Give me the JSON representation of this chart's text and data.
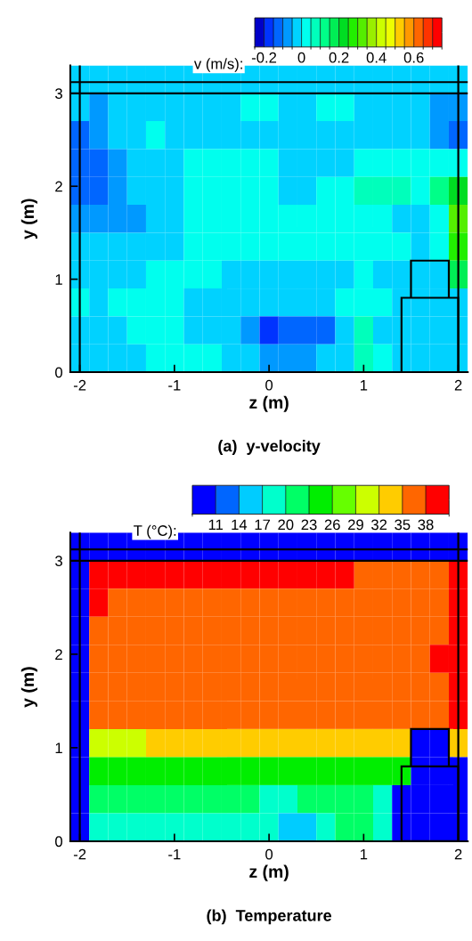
{
  "chart_data": [
    {
      "type": "heatmap",
      "title": "(a)  y-velocity",
      "xlabel": "z (m)",
      "ylabel": "y (m)",
      "clabel": "v (m/s):",
      "x": [
        -2.0,
        -1.8,
        -1.6,
        -1.4,
        -1.2,
        -1.0,
        -0.8,
        -0.6,
        -0.4,
        -0.2,
        0.0,
        0.2,
        0.4,
        0.6,
        0.8,
        1.0,
        1.2,
        1.4,
        1.6,
        1.8,
        2.0
      ],
      "y": [
        3.15,
        2.85,
        2.55,
        2.25,
        1.95,
        1.65,
        1.35,
        1.05,
        0.75,
        0.45,
        0.15
      ],
      "xlim": [
        -2.1,
        2.1
      ],
      "ylim": [
        0,
        3.3
      ],
      "xticks": [
        -2,
        -1,
        0,
        1,
        2
      ],
      "yticks": [
        0,
        1,
        2,
        3
      ],
      "ref_lines": [
        {
          "axis": "x",
          "value": -2,
          "label": null
        },
        {
          "axis": "x",
          "value": 2,
          "label": null
        },
        {
          "axis": "y",
          "value": 3,
          "label": null
        },
        {
          "axis": "y",
          "value": 3.12,
          "label": null
        }
      ],
      "clim": [
        -0.25,
        0.75
      ],
      "cticks": [
        -0.2,
        0,
        0.2,
        0.4,
        0.6
      ],
      "colors": [
        "#0000c8",
        "#0033ff",
        "#0066ff",
        "#0099ff",
        "#00d2ff",
        "#00ffee",
        "#00ffbb",
        "#00ff88",
        "#00ee55",
        "#00dd22",
        "#22ee00",
        "#55ee00",
        "#99ee00",
        "#ccff00",
        "#eeff00",
        "#ffcc00",
        "#ff9900",
        "#ff6600",
        "#ff3300",
        "#ff0000"
      ],
      "cells": [
        [
          -0.03,
          -0.03,
          -0.03,
          -0.03,
          -0.03,
          -0.03,
          -0.03,
          -0.03,
          -0.03,
          -0.03,
          -0.03,
          -0.03,
          -0.03,
          -0.03,
          -0.03,
          -0.03,
          -0.03,
          -0.03,
          -0.03,
          -0.03,
          -0.03
        ],
        [
          -0.03,
          -0.07,
          -0.03,
          -0.03,
          -0.03,
          -0.03,
          -0.03,
          -0.03,
          -0.03,
          0.02,
          0.02,
          -0.03,
          -0.03,
          0.02,
          0.02,
          -0.03,
          -0.03,
          -0.03,
          -0.03,
          -0.07,
          -0.07
        ],
        [
          -0.12,
          -0.07,
          -0.03,
          -0.03,
          0.02,
          -0.03,
          -0.03,
          -0.03,
          -0.03,
          -0.03,
          -0.03,
          -0.03,
          -0.03,
          -0.03,
          -0.03,
          -0.03,
          -0.03,
          -0.03,
          -0.03,
          -0.07,
          -0.12
        ],
        [
          -0.12,
          -0.12,
          -0.07,
          -0.03,
          -0.03,
          -0.03,
          0.02,
          0.02,
          0.02,
          0.02,
          0.02,
          -0.03,
          -0.03,
          -0.03,
          -0.03,
          0.02,
          0.02,
          0.02,
          0.02,
          0.02,
          0.02
        ],
        [
          -0.12,
          -0.12,
          -0.07,
          -0.03,
          -0.03,
          -0.03,
          0.02,
          0.02,
          0.02,
          0.02,
          0.02,
          -0.03,
          -0.03,
          0.02,
          0.02,
          0.07,
          0.07,
          0.07,
          0.02,
          0.12,
          0.22
        ],
        [
          -0.07,
          -0.07,
          -0.07,
          -0.07,
          -0.03,
          -0.03,
          0.02,
          0.02,
          0.02,
          0.02,
          0.02,
          0.02,
          0.02,
          0.02,
          0.02,
          0.02,
          0.02,
          -0.03,
          -0.03,
          0.02,
          0.32
        ],
        [
          -0.03,
          -0.03,
          -0.03,
          -0.03,
          -0.03,
          -0.03,
          0.02,
          0.02,
          0.02,
          0.02,
          0.02,
          0.02,
          0.02,
          0.02,
          0.02,
          0.02,
          0.02,
          0.02,
          -0.03,
          0.02,
          0.27
        ],
        [
          -0.03,
          -0.03,
          -0.03,
          -0.03,
          0.02,
          0.02,
          0.02,
          0.02,
          -0.03,
          -0.03,
          -0.03,
          -0.03,
          -0.03,
          -0.03,
          -0.03,
          0.02,
          -0.03,
          -0.03,
          -0.03,
          -0.03,
          0.17
        ],
        [
          0.02,
          -0.03,
          0.02,
          0.02,
          0.02,
          0.02,
          -0.03,
          -0.03,
          -0.03,
          -0.03,
          -0.03,
          -0.03,
          -0.03,
          -0.03,
          0.02,
          0.02,
          0.02,
          -0.03,
          -0.03,
          -0.03,
          -0.03
        ],
        [
          -0.03,
          -0.03,
          -0.03,
          0.02,
          0.02,
          0.02,
          -0.03,
          -0.03,
          -0.03,
          -0.07,
          -0.17,
          -0.12,
          -0.12,
          -0.12,
          -0.03,
          0.07,
          -0.03,
          -0.03,
          -0.03,
          -0.03,
          -0.03
        ],
        [
          -0.03,
          -0.03,
          -0.03,
          -0.03,
          0.02,
          0.02,
          0.02,
          0.02,
          -0.03,
          -0.03,
          -0.07,
          -0.07,
          -0.07,
          -0.03,
          -0.03,
          0.07,
          0.02,
          -0.03,
          -0.03,
          -0.03,
          -0.03
        ]
      ]
    },
    {
      "type": "heatmap",
      "title": "(b)  Temperature",
      "xlabel": "z (m)",
      "ylabel": "y (m)",
      "clabel": "T (°C):",
      "x": [
        -2.0,
        -1.8,
        -1.6,
        -1.4,
        -1.2,
        -1.0,
        -0.8,
        -0.6,
        -0.4,
        -0.2,
        0.0,
        0.2,
        0.4,
        0.6,
        0.8,
        1.0,
        1.2,
        1.4,
        1.6,
        1.8,
        2.0
      ],
      "y": [
        3.15,
        2.85,
        2.55,
        2.25,
        1.95,
        1.65,
        1.35,
        1.05,
        0.75,
        0.45,
        0.15
      ],
      "xlim": [
        -2.1,
        2.1
      ],
      "ylim": [
        0,
        3.3
      ],
      "xticks": [
        -2,
        -1,
        0,
        1,
        2
      ],
      "yticks": [
        0,
        1,
        2,
        3
      ],
      "ref_lines": [
        {
          "axis": "x",
          "value": -2,
          "label": null
        },
        {
          "axis": "x",
          "value": 2,
          "label": null
        },
        {
          "axis": "y",
          "value": 3,
          "label": null
        },
        {
          "axis": "y",
          "value": 3.12,
          "label": null
        }
      ],
      "clim": [
        8,
        41
      ],
      "cticks": [
        11,
        14,
        17,
        20,
        23,
        26,
        29,
        32,
        35,
        38
      ],
      "colors": [
        "#0000ff",
        "#0066ff",
        "#00ccff",
        "#00ffcc",
        "#00ff66",
        "#00ee00",
        "#66ff00",
        "#ccff00",
        "#ffcc00",
        "#ff6600",
        "#ff0000"
      ],
      "cells": [
        [
          9.5,
          9.5,
          9.5,
          9.5,
          9.5,
          9.5,
          9.5,
          9.5,
          9.5,
          9.5,
          9.5,
          9.5,
          9.5,
          9.5,
          9.5,
          9.5,
          9.5,
          9.5,
          9.5,
          9.5,
          9.5
        ],
        [
          9.5,
          39.5,
          39.5,
          39.5,
          39.5,
          39.5,
          39.5,
          39.5,
          39.5,
          39.5,
          39.5,
          39.5,
          39.5,
          39.5,
          39.5,
          36.5,
          36.5,
          36.5,
          36.5,
          36.5,
          39.5
        ],
        [
          9.5,
          39.5,
          36.5,
          36.5,
          36.5,
          36.5,
          36.5,
          36.5,
          36.5,
          36.5,
          36.5,
          36.5,
          36.5,
          36.5,
          36.5,
          36.5,
          36.5,
          36.5,
          36.5,
          36.5,
          39.5
        ],
        [
          9.5,
          36.5,
          36.5,
          36.5,
          36.5,
          36.5,
          36.5,
          36.5,
          36.5,
          36.5,
          36.5,
          36.5,
          36.5,
          36.5,
          36.5,
          36.5,
          36.5,
          36.5,
          36.5,
          36.5,
          39.5
        ],
        [
          9.5,
          36.5,
          36.5,
          36.5,
          36.5,
          36.5,
          36.5,
          36.5,
          36.5,
          36.5,
          36.5,
          36.5,
          36.5,
          36.5,
          36.5,
          36.5,
          36.5,
          36.5,
          36.5,
          39.5,
          39.5
        ],
        [
          9.5,
          36.5,
          36.5,
          36.5,
          36.5,
          36.5,
          36.5,
          36.5,
          36.5,
          36.5,
          36.5,
          36.5,
          36.5,
          36.5,
          36.5,
          36.5,
          36.5,
          36.5,
          36.5,
          36.5,
          39.5
        ],
        [
          9.5,
          36.5,
          36.5,
          36.5,
          36.5,
          36.5,
          36.5,
          36.5,
          36.5,
          36.5,
          36.5,
          36.5,
          36.5,
          36.5,
          36.5,
          36.5,
          36.5,
          36.5,
          36.5,
          36.5,
          39.5
        ],
        [
          9.5,
          30.5,
          30.5,
          30.5,
          33.5,
          33.5,
          33.5,
          33.5,
          33.5,
          33.5,
          33.5,
          33.5,
          33.5,
          33.5,
          33.5,
          33.5,
          33.5,
          33.5,
          9.5,
          9.5,
          33.5
        ],
        [
          9.5,
          24.5,
          24.5,
          24.5,
          24.5,
          24.5,
          24.5,
          24.5,
          24.5,
          24.5,
          24.5,
          24.5,
          24.5,
          24.5,
          24.5,
          24.5,
          24.5,
          24.5,
          9.5,
          9.5,
          9.5
        ],
        [
          9.5,
          21.5,
          21.5,
          21.5,
          21.5,
          21.5,
          21.5,
          21.5,
          21.5,
          21.5,
          18.5,
          18.5,
          21.5,
          21.5,
          21.5,
          21.5,
          18.5,
          9.5,
          9.5,
          9.5,
          9.5
        ],
        [
          9.5,
          18.5,
          18.5,
          18.5,
          18.5,
          18.5,
          18.5,
          18.5,
          18.5,
          18.5,
          18.5,
          15.5,
          15.5,
          18.5,
          21.5,
          21.5,
          18.5,
          9.5,
          9.5,
          9.5,
          9.5
        ]
      ]
    }
  ]
}
